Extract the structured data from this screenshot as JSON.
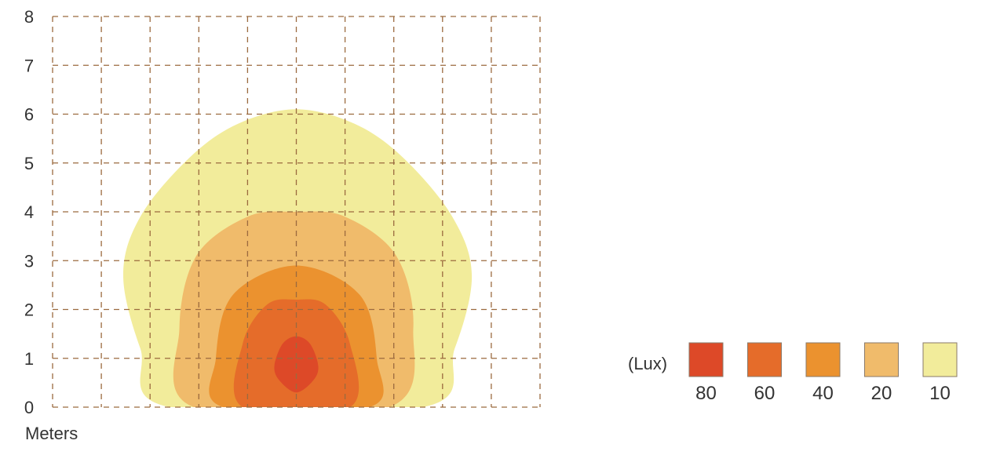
{
  "chart_data": {
    "type": "contour",
    "title": "",
    "xlabel": "",
    "ylabel": "",
    "unit_label": "Meters",
    "ylim": [
      0,
      8
    ],
    "xlim": [
      -5,
      5
    ],
    "y_ticks": [
      "0",
      "1",
      "2",
      "3",
      "4",
      "5",
      "6",
      "7",
      "8"
    ],
    "grid": true,
    "legend_title": "(Lux)",
    "legend_position": "bottom-right",
    "levels": [
      {
        "label": "10",
        "value": 10,
        "color": "#f2ec9b",
        "points": [
          [
            -2.6,
            0
          ],
          [
            -3.2,
            1.2
          ],
          [
            -3.55,
            2.7
          ],
          [
            -3.2,
            3.9
          ],
          [
            -2.2,
            5.1
          ],
          [
            -1.2,
            5.8
          ],
          [
            0,
            6.1
          ],
          [
            1.2,
            5.8
          ],
          [
            2.2,
            5.1
          ],
          [
            3.2,
            3.9
          ],
          [
            3.6,
            2.7
          ],
          [
            3.25,
            1.2
          ],
          [
            2.6,
            0
          ]
        ]
      },
      {
        "label": "20",
        "value": 20,
        "color": "#f0bb6b",
        "points": [
          [
            -2.1,
            0
          ],
          [
            -2.4,
            1.6
          ],
          [
            -2.05,
            3.1
          ],
          [
            -1.0,
            3.9
          ],
          [
            0,
            4.0
          ],
          [
            1.0,
            3.9
          ],
          [
            2.05,
            3.1
          ],
          [
            2.4,
            1.6
          ],
          [
            1.9,
            0
          ]
        ]
      },
      {
        "label": "40",
        "value": 40,
        "color": "#eb922f",
        "points": [
          [
            -1.5,
            0
          ],
          [
            -1.65,
            1.0
          ],
          [
            -1.3,
            2.3
          ],
          [
            0,
            2.9
          ],
          [
            1.3,
            2.3
          ],
          [
            1.65,
            1.0
          ],
          [
            1.5,
            0
          ]
        ]
      },
      {
        "label": "60",
        "value": 60,
        "color": "#e56c2a",
        "points": [
          [
            -1.1,
            0
          ],
          [
            -1.1,
            1.3
          ],
          [
            -0.6,
            2.1
          ],
          [
            0,
            2.2
          ],
          [
            0.6,
            2.1
          ],
          [
            1.1,
            1.3
          ],
          [
            1.1,
            0
          ]
        ]
      },
      {
        "label": "80",
        "value": 80,
        "color": "#dd4928",
        "points": [
          [
            0,
            0.3
          ],
          [
            -0.35,
            0.55
          ],
          [
            -0.45,
            0.85
          ],
          [
            -0.28,
            1.3
          ],
          [
            0,
            1.45
          ],
          [
            0.28,
            1.3
          ],
          [
            0.45,
            0.85
          ],
          [
            0.35,
            0.55
          ]
        ]
      }
    ]
  }
}
